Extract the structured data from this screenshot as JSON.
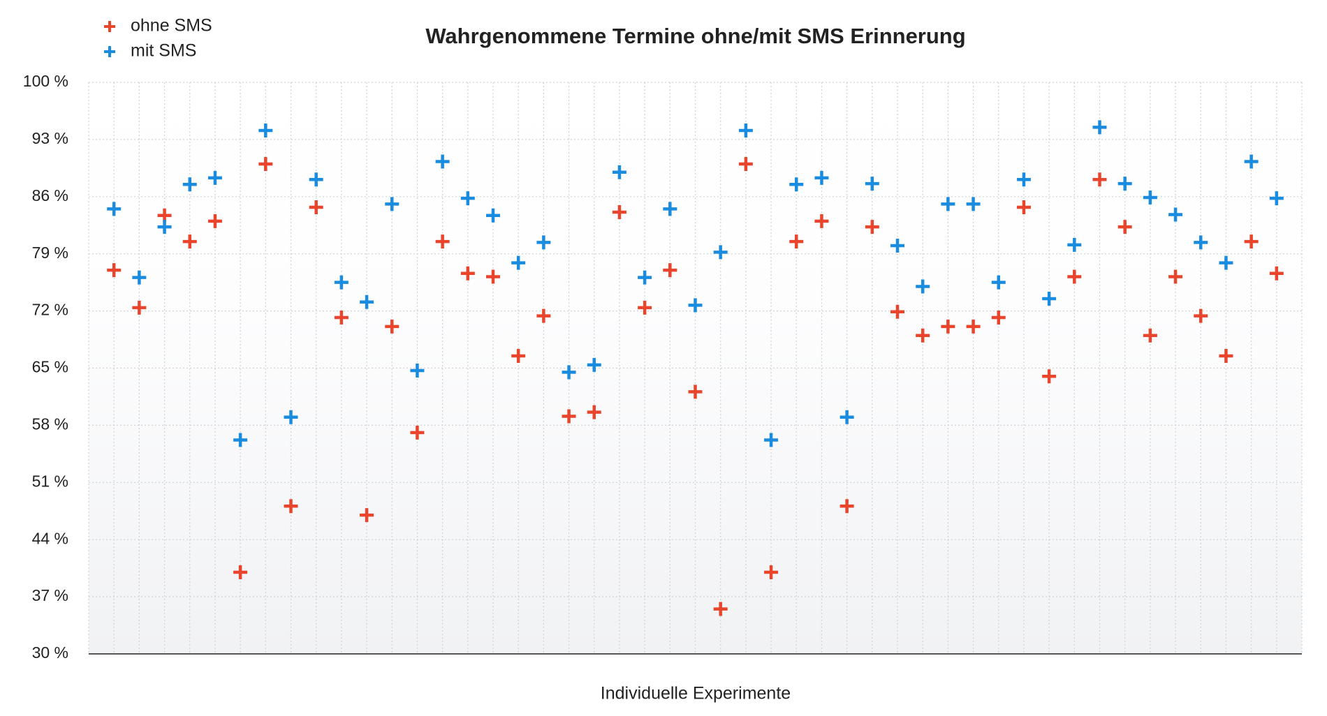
{
  "chart_data": {
    "type": "scatter",
    "title": "Wahrgenommene Termine ohne/mit SMS Erinnerung",
    "x_label": "Individuelle Experimente",
    "categories": [
      null,
      null,
      null,
      null,
      null,
      null,
      null,
      null,
      null,
      null,
      null,
      null,
      null,
      null,
      null,
      null,
      null,
      null,
      null,
      null,
      null,
      null,
      null,
      null,
      null,
      null,
      null,
      null,
      null,
      null,
      null,
      null,
      null,
      null,
      null,
      null,
      null,
      null,
      null,
      null,
      null,
      null,
      null,
      null,
      null,
      null,
      null
    ],
    "series": [
      {
        "name": "ohne SMS",
        "color": "#e8452c",
        "values": [
          77.0,
          72.4,
          83.7,
          80.5,
          83.0,
          40.0,
          90.0,
          48.1,
          84.7,
          71.2,
          47.0,
          70.1,
          57.1,
          80.5,
          76.6,
          76.2,
          66.5,
          71.4,
          59.1,
          59.6,
          84.1,
          72.4,
          77.0,
          62.1,
          35.5,
          90.0,
          40.0,
          80.5,
          83.0,
          48.1,
          82.3,
          71.9,
          69.0,
          70.1,
          70.1,
          71.2,
          84.7,
          64.0,
          76.2,
          88.1,
          82.3,
          69.0,
          76.2,
          71.4,
          66.5,
          80.5,
          76.6
        ]
      },
      {
        "name": "mit SMS",
        "color": "#1a8ce0",
        "values": [
          84.5,
          76.1,
          82.3,
          87.5,
          88.3,
          56.2,
          94.1,
          59.0,
          88.1,
          75.5,
          73.1,
          85.1,
          64.7,
          90.3,
          85.8,
          83.7,
          77.9,
          80.4,
          64.5,
          65.4,
          89.0,
          76.1,
          84.5,
          72.7,
          79.2,
          94.1,
          56.2,
          87.5,
          88.3,
          59.0,
          87.6,
          80.0,
          75.0,
          85.1,
          85.1,
          75.5,
          88.1,
          73.5,
          80.1,
          94.5,
          87.6,
          85.9,
          83.8,
          80.4,
          77.9,
          90.3,
          85.8
        ]
      }
    ],
    "ylim": [
      30,
      100
    ],
    "yticks": [
      {
        "value": 30,
        "label": "30 %"
      },
      {
        "value": 37,
        "label": "37 %"
      },
      {
        "value": 44,
        "label": "44 %"
      },
      {
        "value": 51,
        "label": "51 %"
      },
      {
        "value": 58,
        "label": "58 %"
      },
      {
        "value": 65,
        "label": "65 %"
      },
      {
        "value": 72,
        "label": "72 %"
      },
      {
        "value": 79,
        "label": "79 %"
      },
      {
        "value": 86,
        "label": "86 %"
      },
      {
        "value": 93,
        "label": "93 %"
      },
      {
        "value": 100,
        "label": "100 %"
      }
    ],
    "grid": true,
    "legend": "top-left"
  }
}
